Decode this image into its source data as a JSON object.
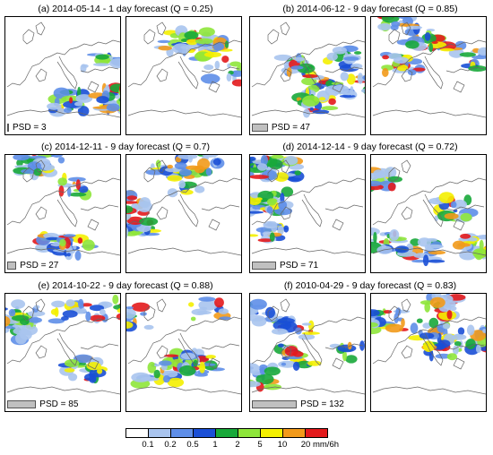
{
  "panels": [
    {
      "title": "(a) 2014-05-14 - 1 day forecast (Q = 0.25)",
      "psd_label": "PSD = 3",
      "psd": 3
    },
    {
      "title": "(b) 2014-06-12 - 9 day forecast (Q = 0.85)",
      "psd_label": "PSD = 47",
      "psd": 47
    },
    {
      "title": "(c) 2014-12-11 - 9 day forecast (Q = 0.7)",
      "psd_label": "PSD = 27",
      "psd": 27
    },
    {
      "title": "(d) 2014-12-14 - 9 day forecast (Q = 0.72)",
      "psd_label": "PSD = 71",
      "psd": 71
    },
    {
      "title": "(e) 2014-10-22 - 9 day forecast (Q = 0.88)",
      "psd_label": "PSD = 85",
      "psd": 85
    },
    {
      "title": "(f) 2010-04-29 - 9 day forecast (Q = 0.83)",
      "psd_label": "PSD = 132",
      "psd": 132
    }
  ],
  "legend": {
    "labels": [
      "0.1",
      "0.2",
      "0.5",
      "1",
      "2",
      "5",
      "10",
      "20 mm/6h"
    ],
    "colors": [
      "#ffffff",
      "#a9c4ee",
      "#5e8ee8",
      "#1a4fd6",
      "#18a93a",
      "#8ee63a",
      "#f4f000",
      "#f29a1a",
      "#e31a1c"
    ]
  }
}
